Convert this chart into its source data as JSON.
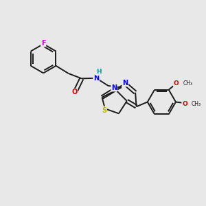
{
  "background_color": "#e8e8e8",
  "bond_color": "#1a1a1a",
  "atom_colors": {
    "F": "#cc00cc",
    "O": "#dd0000",
    "N": "#0000ee",
    "S": "#bbbb00",
    "H": "#009999",
    "C": "#1a1a1a"
  },
  "figsize": [
    3.0,
    3.0
  ],
  "dpi": 100
}
